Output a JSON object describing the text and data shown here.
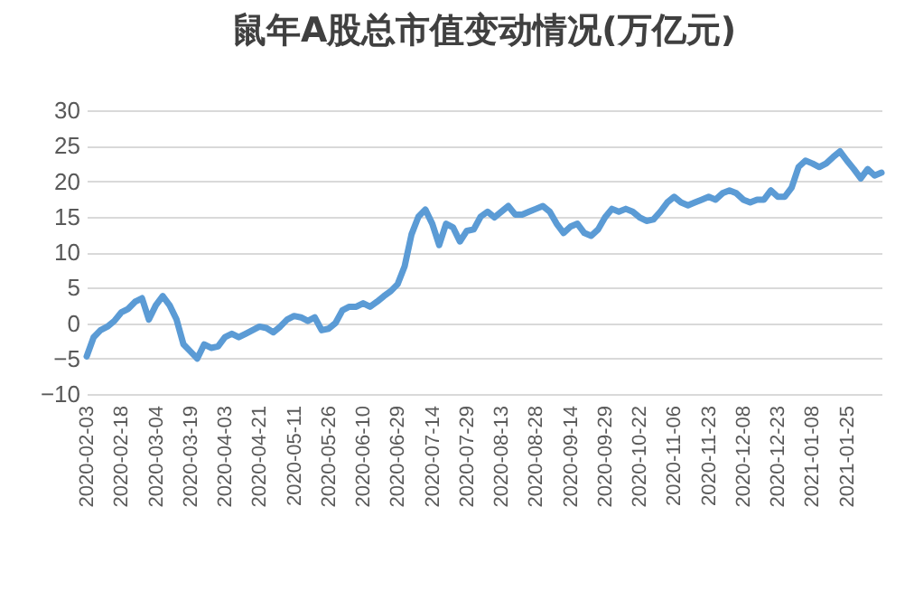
{
  "chart_data": {
    "type": "line",
    "title": "鼠年A股总市值变动情况(万亿元)",
    "categories": [
      "2020-02-03",
      null,
      null,
      null,
      null,
      "2020-02-18",
      null,
      null,
      null,
      null,
      "2020-03-04",
      null,
      null,
      null,
      null,
      "2020-03-19",
      null,
      null,
      null,
      null,
      "2020-04-03",
      null,
      null,
      null,
      null,
      "2020-04-21",
      null,
      null,
      null,
      null,
      "2020-05-11",
      null,
      null,
      null,
      null,
      "2020-05-26",
      null,
      null,
      null,
      null,
      "2020-06-10",
      null,
      null,
      null,
      null,
      "2020-06-29",
      null,
      null,
      null,
      null,
      "2020-07-14",
      null,
      null,
      null,
      null,
      "2020-07-29",
      null,
      null,
      null,
      null,
      "2020-08-13",
      null,
      null,
      null,
      null,
      "2020-08-28",
      null,
      null,
      null,
      null,
      "2020-09-14",
      null,
      null,
      null,
      null,
      "2020-09-29",
      null,
      null,
      null,
      null,
      "2020-10-22",
      null,
      null,
      null,
      null,
      "2020-11-06",
      null,
      null,
      null,
      null,
      "2020-11-23",
      null,
      null,
      null,
      null,
      "2020-12-08",
      null,
      null,
      null,
      null,
      "2020-12-23",
      null,
      null,
      null,
      null,
      "2021-01-08",
      null,
      null,
      null,
      null,
      "2021-01-25",
      null,
      null,
      null,
      null,
      null
    ],
    "series": [
      {
        "color": "#5b9bd5",
        "values": [
          -4.7,
          -2,
          -1,
          -0.5,
          0.3,
          1.5,
          2,
          3,
          3.5,
          0.5,
          2.5,
          3.8,
          2.5,
          0.5,
          -3,
          -4,
          -5,
          -3,
          -3.5,
          -3.3,
          -2,
          -1.5,
          -2,
          -1.5,
          -1,
          -0.5,
          -0.7,
          -1.3,
          -0.5,
          0.5,
          1,
          0.8,
          0.3,
          0.8,
          -1,
          -0.8,
          0,
          1.8,
          2.3,
          2.3,
          2.8,
          2.3,
          3,
          3.8,
          4.5,
          5.5,
          8,
          12.5,
          15,
          16,
          14,
          11,
          14,
          13.5,
          11.5,
          13,
          13.2,
          15,
          15.7,
          14.9,
          15.7,
          16.5,
          15.3,
          15.3,
          15.7,
          16.1,
          16.5,
          15.7,
          14,
          12.7,
          13.6,
          14,
          12.7,
          12.3,
          13.2,
          14.9,
          16.1,
          15.7,
          16.1,
          15.7,
          14.9,
          14.4,
          14.6,
          15.7,
          17,
          17.8,
          17,
          16.6,
          17,
          17.4,
          17.8,
          17.4,
          18.3,
          18.7,
          18.3,
          17.4,
          17,
          17.4,
          17.4,
          18.7,
          17.8,
          17.8,
          19.1,
          22,
          22.9,
          22.5,
          22,
          22.5,
          23.4,
          24.2,
          22.9,
          21.7,
          20.4,
          21.7,
          20.8,
          21.2
        ]
      }
    ],
    "ylim": [
      -10,
      30
    ],
    "yticks": [
      -10,
      -5,
      0,
      5,
      10,
      15,
      20,
      25,
      30
    ],
    "grid": "y"
  }
}
